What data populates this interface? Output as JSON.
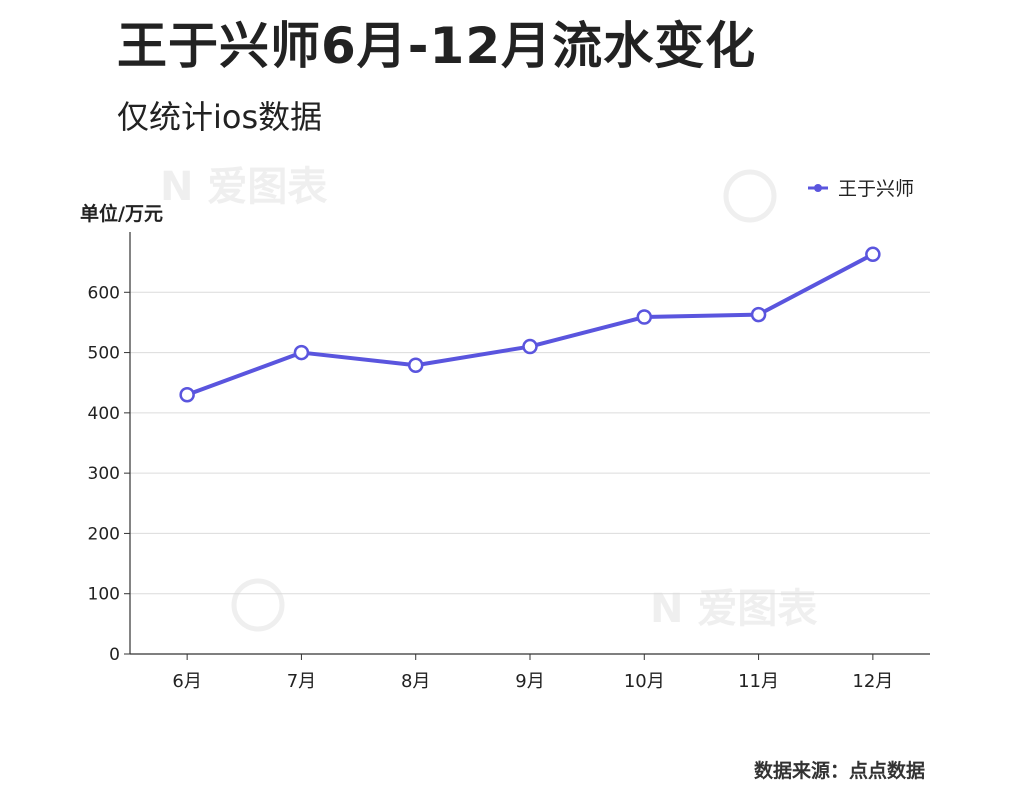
{
  "title": "王于兴师6月-12月流水变化",
  "subtitle": "仅统计ios数据",
  "source": "数据来源：点点数据",
  "chart_data": {
    "type": "line",
    "categories": [
      "6月",
      "7月",
      "8月",
      "9月",
      "10月",
      "11月",
      "12月"
    ],
    "series": [
      {
        "name": "王于兴师",
        "values": [
          430,
          500,
          479,
          510,
          559,
          563,
          663
        ],
        "color": "#5a55de"
      }
    ],
    "ylabel": "单位/万元",
    "ylim": [
      0,
      700
    ],
    "yticks": [
      0,
      100,
      200,
      300,
      400,
      500,
      600
    ],
    "grid": true,
    "legend_position": "top-right"
  }
}
